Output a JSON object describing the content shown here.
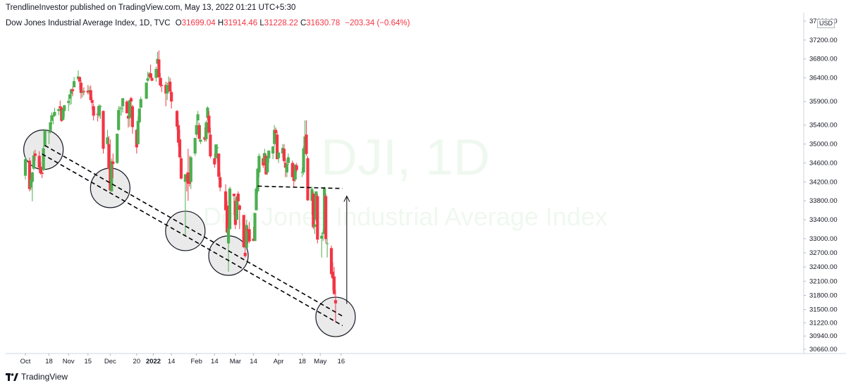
{
  "header": {
    "published_by": "TrendlineInvestor published on TradingView.com, May 13, 2022 01:21 UTC+5:30"
  },
  "legend": {
    "symbol": "Dow Jones Industrial Average Index, 1D, TVC",
    "open_label": "O",
    "open": "31699.04",
    "high_label": "H",
    "high": "31914.46",
    "low_label": "L",
    "low": "31228.22",
    "close_label": "C",
    "close": "31630.78",
    "change": "−203.34 (−0.64%)"
  },
  "currency": "USD",
  "watermark": {
    "ticker": "DJI, 1D",
    "name": "Dow Jones Industrial Average Index"
  },
  "footer": {
    "brand": "TradingView"
  },
  "colors": {
    "up": "#4caf50",
    "down": "#f23645",
    "trendline": "#000000",
    "circle_fill": "#e6e6e8",
    "watermark": "#4caf50"
  },
  "chart_data": {
    "type": "candlestick",
    "title": "",
    "xlabel": "",
    "ylabel": "",
    "ylim": [
      30660,
      37600
    ],
    "y_ticks": [
      "37600.00",
      "37200.00",
      "36800.00",
      "36400.00",
      "35900.00",
      "35400.00",
      "35000.00",
      "34600.00",
      "34200.00",
      "33800.00",
      "33400.00",
      "33000.00",
      "32700.00",
      "32400.00",
      "32100.00",
      "31800.00",
      "31500.00",
      "31220.00",
      "30940.00",
      "30660.00"
    ],
    "x_ticks": [
      "Oct",
      "18",
      "Nov",
      "15",
      "Dec",
      "20",
      "2022",
      "14",
      "Feb",
      "14",
      "Mar",
      "14",
      "Apr",
      "18",
      "May",
      "16"
    ],
    "x_tick_dates": [
      "2021-10-01",
      "2021-10-18",
      "2021-11-01",
      "2021-11-15",
      "2021-12-01",
      "2021-12-20",
      "2022-01-01",
      "2022-01-14",
      "2022-02-01",
      "2022-02-14",
      "2022-03-01",
      "2022-03-14",
      "2022-04-01",
      "2022-04-18",
      "2022-05-01",
      "2022-05-16"
    ],
    "candles": [
      [
        "2021-10-01",
        34330,
        34730,
        34250,
        34680
      ],
      [
        "2021-10-04",
        34650,
        34710,
        34000,
        34050
      ],
      [
        "2021-10-05",
        34080,
        34400,
        34020,
        34250
      ],
      [
        "2021-10-06",
        34200,
        34420,
        33790,
        34400
      ],
      [
        "2021-10-07",
        34480,
        34850,
        34450,
        34760
      ],
      [
        "2021-10-08",
        34800,
        34880,
        34650,
        34750
      ],
      [
        "2021-10-11",
        34750,
        34850,
        34400,
        34500
      ],
      [
        "2021-10-12",
        34520,
        34620,
        34350,
        34380
      ],
      [
        "2021-10-13",
        34400,
        34500,
        34280,
        34370
      ],
      [
        "2021-10-14",
        34450,
        34950,
        34430,
        34910
      ],
      [
        "2021-10-15",
        34950,
        35310,
        34940,
        35290
      ],
      [
        "2021-10-18",
        35250,
        35260,
        35000,
        35260
      ],
      [
        "2021-10-19",
        35280,
        35500,
        35220,
        35460
      ],
      [
        "2021-10-20",
        35490,
        35670,
        35420,
        35610
      ],
      [
        "2021-10-21",
        35600,
        35640,
        35420,
        35600
      ],
      [
        "2021-10-22",
        35600,
        35770,
        35570,
        35680
      ],
      [
        "2021-10-25",
        35700,
        35760,
        35610,
        35740
      ],
      [
        "2021-10-26",
        35800,
        35920,
        35700,
        35760
      ],
      [
        "2021-10-27",
        35770,
        35790,
        35470,
        35490
      ],
      [
        "2021-10-28",
        35510,
        35740,
        35500,
        35730
      ],
      [
        "2021-10-29",
        35700,
        35830,
        35570,
        35820
      ],
      [
        "2021-11-01",
        35870,
        35970,
        35700,
        35910
      ],
      [
        "2021-11-02",
        35960,
        36060,
        35820,
        36050
      ],
      [
        "2021-11-03",
        36060,
        36170,
        35840,
        36160
      ],
      [
        "2021-11-04",
        36160,
        36210,
        36010,
        36120
      ],
      [
        "2021-11-05",
        36200,
        36420,
        36200,
        36330
      ],
      [
        "2021-11-08",
        36370,
        36560,
        36380,
        36430
      ],
      [
        "2021-11-09",
        36420,
        36420,
        36150,
        36320
      ],
      [
        "2021-11-10",
        36300,
        36350,
        35960,
        36080
      ],
      [
        "2021-11-11",
        36100,
        36170,
        35990,
        36100
      ],
      [
        "2021-11-12",
        36120,
        36200,
        36030,
        36100
      ],
      [
        "2021-11-15",
        36130,
        36250,
        36050,
        36090
      ],
      [
        "2021-11-16",
        36110,
        36220,
        36050,
        36140
      ],
      [
        "2021-11-17",
        36140,
        36240,
        35920,
        35930
      ],
      [
        "2021-11-18",
        35930,
        35990,
        35730,
        35870
      ],
      [
        "2021-11-19",
        35800,
        35860,
        35500,
        35600
      ],
      [
        "2021-11-22",
        35640,
        35800,
        35480,
        35620
      ],
      [
        "2021-11-23",
        35600,
        35840,
        35560,
        35810
      ],
      [
        "2021-11-24",
        35800,
        35830,
        35530,
        35800
      ],
      [
        "2021-11-26",
        35700,
        35710,
        34800,
        34900
      ],
      [
        "2021-11-29",
        35000,
        35300,
        34980,
        35140
      ],
      [
        "2021-11-30",
        35000,
        35170,
        34450,
        34480
      ],
      [
        "2021-12-01",
        34630,
        35100,
        34000,
        34020
      ],
      [
        "2021-12-02",
        34000,
        34700,
        33990,
        34640
      ],
      [
        "2021-12-03",
        34630,
        34800,
        34280,
        34580
      ],
      [
        "2021-12-06",
        34600,
        35200,
        34580,
        35220
      ],
      [
        "2021-12-07",
        35300,
        35800,
        35280,
        35720
      ],
      [
        "2021-12-08",
        35750,
        35800,
        35600,
        35760
      ],
      [
        "2021-12-09",
        35760,
        35800,
        35600,
        35760
      ],
      [
        "2021-12-10",
        35800,
        35970,
        35670,
        35970
      ],
      [
        "2021-12-13",
        35900,
        35930,
        35650,
        35650
      ],
      [
        "2021-12-14",
        35600,
        35680,
        35350,
        35540
      ],
      [
        "2021-12-15",
        35550,
        35930,
        35370,
        35930
      ],
      [
        "2021-12-16",
        35970,
        36000,
        35800,
        35900
      ],
      [
        "2021-12-17",
        35800,
        35830,
        35220,
        35360
      ],
      [
        "2021-12-20",
        35300,
        35320,
        34800,
        34930
      ],
      [
        "2021-12-21",
        35000,
        35580,
        34990,
        35490
      ],
      [
        "2021-12-22",
        35460,
        35760,
        35440,
        35750
      ],
      [
        "2021-12-23",
        35770,
        36000,
        35760,
        35950
      ],
      [
        "2021-12-27",
        35960,
        36300,
        35950,
        36300
      ],
      [
        "2021-12-28",
        36340,
        36530,
        36310,
        36390
      ],
      [
        "2021-12-29",
        36420,
        36520,
        36380,
        36490
      ],
      [
        "2021-12-30",
        36500,
        36680,
        36400,
        36400
      ],
      [
        "2021-12-31",
        36400,
        36480,
        36330,
        36340
      ],
      [
        "2022-01-03",
        36400,
        36640,
        36320,
        36590
      ],
      [
        "2022-01-04",
        36700,
        36950,
        36700,
        36800
      ],
      [
        "2022-01-05",
        36790,
        36980,
        36400,
        36410
      ],
      [
        "2022-01-06",
        36400,
        36500,
        36200,
        36240
      ],
      [
        "2022-01-07",
        36250,
        36400,
        36100,
        36230
      ],
      [
        "2022-01-10",
        36250,
        36320,
        35800,
        36070
      ],
      [
        "2022-01-11",
        36070,
        36300,
        35930,
        36250
      ],
      [
        "2022-01-12",
        36290,
        36430,
        36200,
        36290
      ],
      [
        "2022-01-13",
        36320,
        36400,
        36060,
        36110
      ],
      [
        "2022-01-14",
        36100,
        36130,
        35750,
        35900
      ],
      [
        "2022-01-18",
        35700,
        35720,
        35300,
        35370
      ],
      [
        "2022-01-19",
        35400,
        35500,
        34950,
        35030
      ],
      [
        "2022-01-20",
        35100,
        35300,
        34700,
        34720
      ],
      [
        "2022-01-21",
        34700,
        34750,
        34250,
        34270
      ],
      [
        "2022-01-24",
        34200,
        34370,
        33050,
        34360
      ],
      [
        "2022-01-25",
        34300,
        34400,
        34000,
        34290
      ],
      [
        "2022-01-26",
        34400,
        34900,
        33800,
        34160
      ],
      [
        "2022-01-27",
        34300,
        34750,
        34100,
        34160
      ],
      [
        "2022-01-28",
        34200,
        34750,
        34050,
        34720
      ],
      [
        "2022-01-31",
        34800,
        35120,
        34750,
        35130
      ],
      [
        "2022-02-01",
        35200,
        35500,
        35150,
        35400
      ],
      [
        "2022-02-02",
        35500,
        35700,
        35400,
        35630
      ],
      [
        "2022-02-03",
        35400,
        35450,
        35050,
        35110
      ],
      [
        "2022-02-04",
        35050,
        35400,
        35000,
        35090
      ],
      [
        "2022-02-07",
        35150,
        35350,
        35050,
        35090
      ],
      [
        "2022-02-08",
        35100,
        35500,
        35050,
        35460
      ],
      [
        "2022-02-09",
        35550,
        35800,
        35500,
        35770
      ],
      [
        "2022-02-10",
        35600,
        35700,
        35200,
        35240
      ],
      [
        "2022-02-11",
        35200,
        35350,
        34700,
        34740
      ],
      [
        "2022-02-14",
        34700,
        34800,
        34500,
        34570
      ],
      [
        "2022-02-15",
        34700,
        35000,
        34700,
        34990
      ],
      [
        "2022-02-16",
        34930,
        35000,
        34630,
        34930
      ],
      [
        "2022-02-17",
        34800,
        34800,
        34250,
        34310
      ],
      [
        "2022-02-18",
        34300,
        34400,
        34000,
        34080
      ],
      [
        "2022-02-22",
        34000,
        34150,
        33600,
        33600
      ],
      [
        "2022-02-23",
        33700,
        33800,
        33100,
        33130
      ],
      [
        "2022-02-24",
        32900,
        33300,
        32300,
        33220
      ],
      [
        "2022-02-25",
        33200,
        34100,
        33200,
        34060
      ],
      [
        "2022-02-28",
        33950,
        33950,
        33500,
        33900
      ],
      [
        "2022-03-01",
        33800,
        33850,
        33200,
        33290
      ],
      [
        "2022-03-02",
        33400,
        33900,
        33380,
        33890
      ],
      [
        "2022-03-03",
        33950,
        34000,
        33700,
        33790
      ],
      [
        "2022-03-04",
        33700,
        33730,
        33200,
        33610
      ],
      [
        "2022-03-07",
        33500,
        33500,
        32800,
        32820
      ],
      [
        "2022-03-08",
        32700,
        33100,
        32600,
        32630
      ],
      [
        "2022-03-09",
        32800,
        33400,
        32800,
        33290
      ],
      [
        "2022-03-10",
        33200,
        33250,
        32900,
        33170
      ],
      [
        "2022-03-11",
        33200,
        33350,
        32900,
        32940
      ],
      [
        "2022-03-14",
        33000,
        33250,
        32950,
        32950
      ],
      [
        "2022-03-15",
        32950,
        33550,
        32950,
        33540
      ],
      [
        "2022-03-16",
        33600,
        34100,
        33600,
        34060
      ],
      [
        "2022-03-17",
        34000,
        34500,
        33950,
        34480
      ],
      [
        "2022-03-18",
        34400,
        34800,
        34300,
        34750
      ],
      [
        "2022-03-21",
        34700,
        34800,
        34500,
        34550
      ],
      [
        "2022-03-22",
        34600,
        34900,
        34550,
        34810
      ],
      [
        "2022-03-23",
        34750,
        34800,
        34350,
        34360
      ],
      [
        "2022-03-24",
        34400,
        34750,
        34350,
        34710
      ],
      [
        "2022-03-25",
        34700,
        34870,
        34600,
        34860
      ],
      [
        "2022-03-28",
        34800,
        34960,
        34680,
        34950
      ],
      [
        "2022-03-29",
        35000,
        35400,
        34950,
        35300
      ],
      [
        "2022-03-30",
        35300,
        35350,
        35100,
        35230
      ],
      [
        "2022-03-31",
        35200,
        35260,
        34690,
        34680
      ],
      [
        "2022-04-01",
        34700,
        34850,
        34600,
        34820
      ],
      [
        "2022-04-04",
        34800,
        35000,
        34700,
        34920
      ],
      [
        "2022-04-05",
        34900,
        35000,
        34600,
        34640
      ],
      [
        "2022-04-06",
        34600,
        34700,
        34300,
        34500
      ],
      [
        "2022-04-07",
        34400,
        34660,
        34300,
        34580
      ],
      [
        "2022-04-08",
        34600,
        34800,
        34550,
        34720
      ],
      [
        "2022-04-11",
        34600,
        34650,
        34300,
        34300
      ],
      [
        "2022-04-12",
        34400,
        34600,
        34100,
        34220
      ],
      [
        "2022-04-13",
        34250,
        34580,
        34200,
        34560
      ],
      [
        "2022-04-14",
        34550,
        34600,
        34400,
        34450
      ],
      [
        "2022-04-18",
        34400,
        34500,
        34300,
        34410
      ],
      [
        "2022-04-19",
        34400,
        34950,
        34350,
        34910
      ],
      [
        "2022-04-20",
        34900,
        35500,
        34900,
        35160
      ],
      [
        "2022-04-21",
        35200,
        35500,
        34750,
        34790
      ],
      [
        "2022-04-22",
        34700,
        34750,
        33800,
        33810
      ],
      [
        "2022-04-25",
        33800,
        34100,
        33500,
        34050
      ],
      [
        "2022-04-26",
        33950,
        34000,
        33200,
        33240
      ],
      [
        "2022-04-27",
        33250,
        33600,
        33100,
        33300
      ],
      [
        "2022-04-28",
        33400,
        34000,
        33350,
        34000
      ],
      [
        "2022-04-29",
        33900,
        33950,
        32900,
        32980
      ],
      [
        "2022-05-02",
        33000,
        33100,
        32600,
        33060
      ],
      [
        "2022-05-03",
        33100,
        33200,
        32950,
        33130
      ],
      [
        "2022-05-04",
        33100,
        34100,
        33100,
        34060
      ],
      [
        "2022-05-05",
        33900,
        33950,
        32900,
        32990
      ],
      [
        "2022-05-06",
        32900,
        33000,
        32600,
        32900
      ],
      [
        "2022-05-09",
        32800,
        32850,
        32200,
        32250
      ],
      [
        "2022-05-10",
        32300,
        32500,
        31900,
        32160
      ],
      [
        "2022-05-11",
        32200,
        32400,
        31800,
        31830
      ],
      [
        "2022-05-12",
        31699.04,
        31914.46,
        31228.22,
        31630.78
      ]
    ],
    "annotations": {
      "trendline_upper": [
        [
          "2021-10-15",
          34970
        ],
        [
          "2022-05-17",
          31360
        ]
      ],
      "trendline_lower": [
        [
          "2021-10-13",
          34790
        ],
        [
          "2022-05-17",
          31160
        ]
      ],
      "resistance": [
        [
          "2022-03-17",
          34110
        ],
        [
          "2022-05-17",
          34060
        ]
      ],
      "arrow": [
        [
          "2022-05-16",
          31620
        ],
        [
          "2022-05-16",
          33900
        ]
      ],
      "circles": [
        "2021-10-14",
        "2021-12-01",
        "2022-01-24",
        "2022-02-24",
        "2022-05-12"
      ]
    }
  }
}
